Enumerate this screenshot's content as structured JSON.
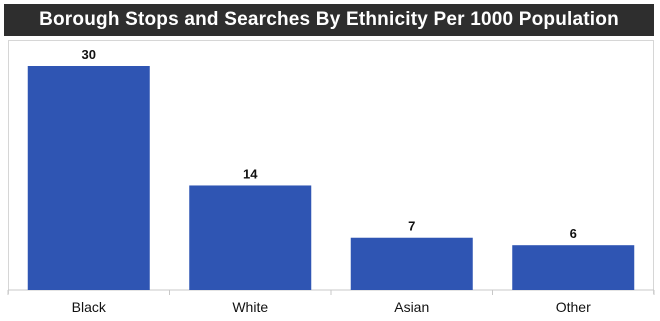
{
  "chart_data": {
    "type": "bar",
    "title": "Borough Stops and Searches By Ethnicity Per 1000 Population",
    "categories": [
      "Black",
      "White",
      "Asian",
      "Other"
    ],
    "values": [
      30,
      14,
      7,
      6
    ],
    "data_labels": [
      "30",
      "14",
      "7",
      "6"
    ],
    "xlabel": "",
    "ylabel": "",
    "ylim": [
      0,
      30
    ],
    "grid": false,
    "legend": "none",
    "bar_color": "#2f55b3",
    "title_background": "#2e2e2e"
  }
}
